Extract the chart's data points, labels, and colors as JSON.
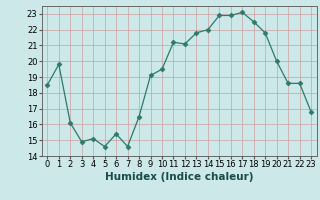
{
  "x": [
    0,
    1,
    2,
    3,
    4,
    5,
    6,
    7,
    8,
    9,
    10,
    11,
    12,
    13,
    14,
    15,
    16,
    17,
    18,
    19,
    20,
    21,
    22,
    23
  ],
  "y": [
    18.5,
    19.8,
    16.1,
    14.9,
    15.1,
    14.6,
    15.4,
    14.6,
    16.5,
    19.1,
    19.5,
    21.2,
    21.1,
    21.8,
    22.0,
    22.9,
    22.9,
    23.1,
    22.5,
    21.8,
    20.0,
    18.6,
    18.6,
    16.8
  ],
  "line_color": "#2d7a6a",
  "marker": "D",
  "marker_size": 2.5,
  "bg_color": "#cce8e8",
  "grid_color": "#d0a0a0",
  "xlabel": "Humidex (Indice chaleur)",
  "xlim": [
    -0.5,
    23.5
  ],
  "ylim": [
    14,
    23.5
  ],
  "yticks": [
    14,
    15,
    16,
    17,
    18,
    19,
    20,
    21,
    22,
    23
  ],
  "xticks": [
    0,
    1,
    2,
    3,
    4,
    5,
    6,
    7,
    8,
    9,
    10,
    11,
    12,
    13,
    14,
    15,
    16,
    17,
    18,
    19,
    20,
    21,
    22,
    23
  ],
  "xlabel_fontsize": 7.5,
  "tick_fontsize": 6.0
}
